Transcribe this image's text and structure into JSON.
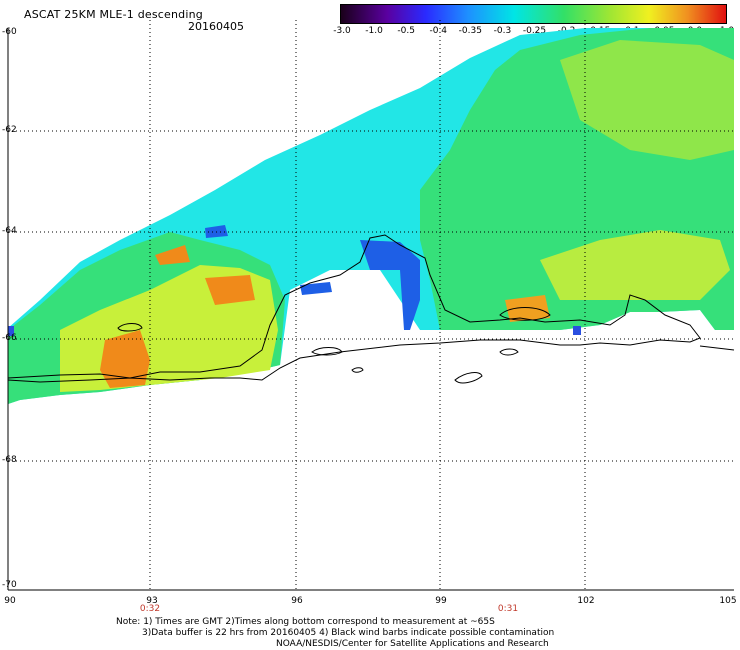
{
  "header": {
    "title": "ASCAT 25KM MLE-1 descending",
    "date": "20160405"
  },
  "colorbar": {
    "labels": [
      "-3.0",
      "-1.0",
      "-0.5",
      "-0.4",
      "-0.35",
      "-0.3",
      "-0.25",
      "-0.2",
      "-0.15",
      "-0.1",
      "-0.05",
      "0.0",
      "1.0"
    ]
  },
  "axes": {
    "lat_labels": [
      "-60",
      "-62",
      "-64",
      "-66",
      "-68",
      "-70"
    ],
    "lon_labels": [
      "90",
      "93",
      "96",
      "99",
      "102",
      "105"
    ]
  },
  "times": [
    "0:32",
    "0:31"
  ],
  "notes": {
    "line1": "Note: 1) Times are GMT 2)Times along bottom correspond to measurement at ~65S",
    "line2": "3)Data buffer is 22 hrs from 20160405 4) Black wind barbs indicate possible contamination",
    "line3": "NOAA/NESDIS/Center for Satellite Applications and Research"
  },
  "colors": {
    "ice_field_main": "#36e07a",
    "ice_field_cyan": "#22e6e6",
    "deep_blue": "#1e5fe6",
    "yellow": "#d8f030",
    "orange": "#f08a1a",
    "coast": "#000000"
  }
}
